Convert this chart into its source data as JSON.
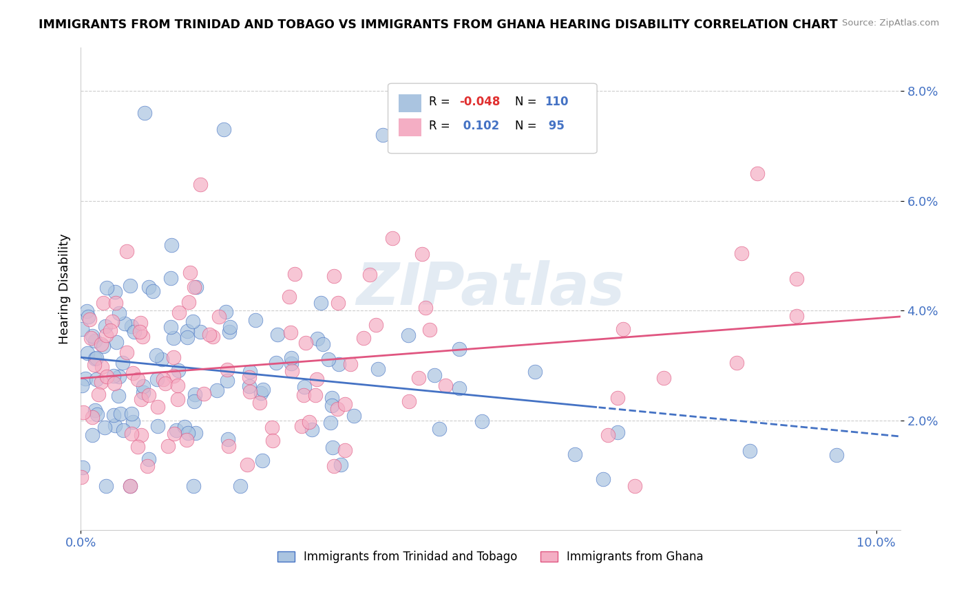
{
  "title": "IMMIGRANTS FROM TRINIDAD AND TOBAGO VS IMMIGRANTS FROM GHANA HEARING DISABILITY CORRELATION CHART",
  "source": "Source: ZipAtlas.com",
  "ylabel": "Hearing Disability",
  "xlim": [
    0.0,
    0.103
  ],
  "ylim": [
    0.0,
    0.088
  ],
  "ytick_labels": [
    "2.0%",
    "4.0%",
    "6.0%",
    "8.0%"
  ],
  "ytick_vals": [
    0.02,
    0.04,
    0.06,
    0.08
  ],
  "xtick_labels": [
    "0.0%",
    "10.0%"
  ],
  "xtick_vals": [
    0.0,
    0.1
  ],
  "color_blue": "#aac4e0",
  "color_pink": "#f4aec4",
  "line_blue": "#4472c4",
  "line_pink": "#e05580",
  "watermark": "ZIPatlas",
  "legend_label1": "Immigrants from Trinidad and Tobago",
  "legend_label2": "Immigrants from Ghana",
  "seed": 99
}
